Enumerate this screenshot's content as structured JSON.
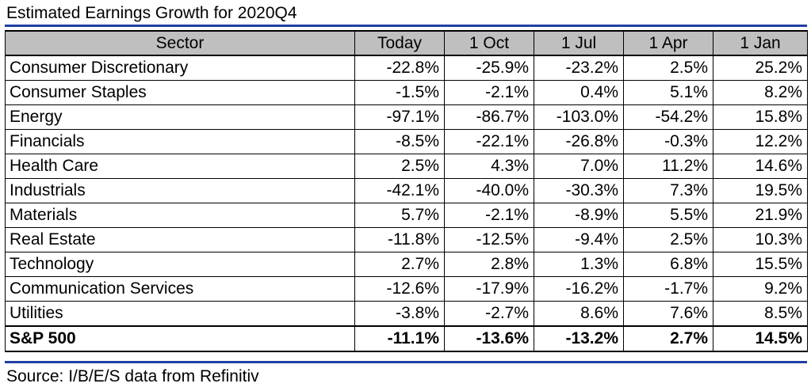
{
  "title": "Estimated Earnings Growth for 2020Q4",
  "source": "Source: I/B/E/S data from Refinitiv",
  "colors": {
    "rule": "#1f3fa3",
    "header_bg": "#bfbfbf"
  },
  "chart_data": {
    "type": "table",
    "title": "Estimated Earnings Growth for 2020Q4",
    "columns": [
      "Sector",
      "Today",
      "1 Oct",
      "1 Jul",
      "1 Apr",
      "1 Jan"
    ],
    "rows": [
      {
        "sector": "Consumer Discretionary",
        "values": [
          "-22.8%",
          "-25.9%",
          "-23.2%",
          "2.5%",
          "25.2%"
        ]
      },
      {
        "sector": "Consumer Staples",
        "values": [
          "-1.5%",
          "-2.1%",
          "0.4%",
          "5.1%",
          "8.2%"
        ]
      },
      {
        "sector": "Energy",
        "values": [
          "-97.1%",
          "-86.7%",
          "-103.0%",
          "-54.2%",
          "15.8%"
        ]
      },
      {
        "sector": "Financials",
        "values": [
          "-8.5%",
          "-22.1%",
          "-26.8%",
          "-0.3%",
          "12.2%"
        ]
      },
      {
        "sector": "Health Care",
        "values": [
          "2.5%",
          "4.3%",
          "7.0%",
          "11.2%",
          "14.6%"
        ]
      },
      {
        "sector": "Industrials",
        "values": [
          "-42.1%",
          "-40.0%",
          "-30.3%",
          "7.3%",
          "19.5%"
        ]
      },
      {
        "sector": "Materials",
        "values": [
          "5.7%",
          "-2.1%",
          "-8.9%",
          "5.5%",
          "21.9%"
        ]
      },
      {
        "sector": "Real Estate",
        "values": [
          "-11.8%",
          "-12.5%",
          "-9.4%",
          "2.5%",
          "10.3%"
        ]
      },
      {
        "sector": "Technology",
        "values": [
          "2.7%",
          "2.8%",
          "1.3%",
          "6.8%",
          "15.5%"
        ]
      },
      {
        "sector": "Communication Services",
        "values": [
          "-12.6%",
          "-17.9%",
          "-16.2%",
          "-1.7%",
          "9.2%"
        ]
      },
      {
        "sector": "Utilities",
        "values": [
          "-3.8%",
          "-2.7%",
          "8.6%",
          "7.6%",
          "8.5%"
        ]
      }
    ],
    "total": {
      "sector": "S&P 500",
      "values": [
        "-11.1%",
        "-13.6%",
        "-13.2%",
        "2.7%",
        "14.5%"
      ]
    }
  }
}
